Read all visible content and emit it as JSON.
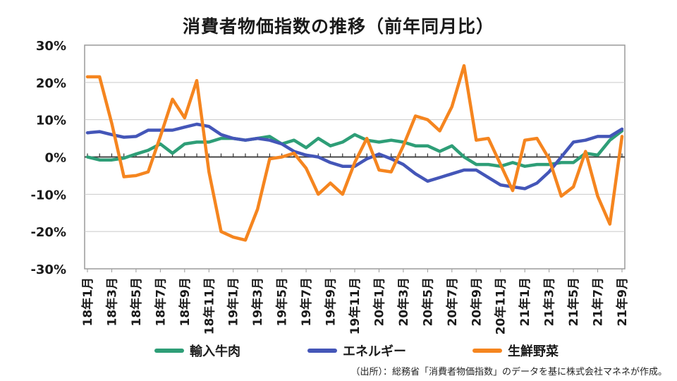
{
  "chart_data": {
    "type": "line",
    "title": "消費者物価指数の推移（前年同月比）",
    "source": "（出所）：総務省「消費者物価指数」のデータを基に株式会社マネネが作成。",
    "ylim": [
      -30,
      30
    ],
    "yticks": [
      "30%",
      "20%",
      "10%",
      "0%",
      "-10%",
      "-20%",
      "-30%"
    ],
    "ytick_values": [
      30,
      20,
      10,
      0,
      -10,
      -20,
      -30
    ],
    "x": [
      "18年1月",
      "18年2月",
      "18年3月",
      "18年4月",
      "18年5月",
      "18年6月",
      "18年7月",
      "18年8月",
      "18年9月",
      "18年10月",
      "18年11月",
      "18年12月",
      "19年1月",
      "19年2月",
      "19年3月",
      "19年4月",
      "19年5月",
      "19年6月",
      "19年7月",
      "19年8月",
      "19年9月",
      "19年10月",
      "19年11月",
      "19年12月",
      "20年1月",
      "20年2月",
      "20年3月",
      "20年4月",
      "20年5月",
      "20年6月",
      "20年7月",
      "20年8月",
      "20年9月",
      "20年10月",
      "20年11月",
      "20年12月",
      "21年1月",
      "21年2月",
      "21年3月",
      "21年4月",
      "21年5月",
      "21年6月",
      "21年7月",
      "21年8月",
      "21年9月"
    ],
    "xtick_labels": [
      "18年1月",
      "18年3月",
      "18年5月",
      "18年7月",
      "18年9月",
      "18年11月",
      "19年1月",
      "19年3月",
      "19年5月",
      "19年7月",
      "19年9月",
      "19年11月",
      "20年1月",
      "20年3月",
      "20年5月",
      "20年7月",
      "20年9月",
      "20年11月",
      "21年1月",
      "21年3月",
      "21年5月",
      "21年7月",
      "21年9月"
    ],
    "grid": true,
    "legend_position": "bottom",
    "series": [
      {
        "name": "輸入牛肉",
        "color": "#2e9e77",
        "values": [
          0,
          -0.8,
          -0.8,
          -0.3,
          0.8,
          1.8,
          3.5,
          1,
          3.5,
          4,
          4,
          5,
          5,
          4.5,
          5,
          5.5,
          3.5,
          4.5,
          2.5,
          5,
          3,
          4,
          6,
          4.5,
          4,
          4.5,
          4,
          3,
          3,
          1.5,
          3,
          0,
          -2,
          -2,
          -2.5,
          -1.5,
          -2.5,
          -2,
          -2,
          -1.5,
          -1.5,
          1,
          0.5,
          4.5,
          7
        ]
      },
      {
        "name": "エネルギー",
        "color": "#4456b8",
        "values": [
          6.5,
          6.8,
          6,
          5.3,
          5.5,
          7.2,
          7.2,
          7.2,
          8,
          8.8,
          8.2,
          6,
          5,
          4.5,
          5,
          4.5,
          3.5,
          1.5,
          0.5,
          0,
          -1.5,
          -2.5,
          -2.5,
          -0.5,
          0.8,
          -0.5,
          -2,
          -4.5,
          -6.5,
          -5.5,
          -4.5,
          -3.5,
          -3.5,
          -5.5,
          -7.5,
          -8,
          -8.5,
          -7,
          -4,
          0,
          4,
          4.5,
          5.5,
          5.5,
          7.5
        ]
      },
      {
        "name": "生鮮野菜",
        "color": "#f5851f",
        "values": [
          21.5,
          21.5,
          9,
          -5.3,
          -5,
          -4,
          5.5,
          15.5,
          10.5,
          20.5,
          -4,
          -20,
          -21.5,
          -22.3,
          -14,
          -0.5,
          0,
          1,
          -3,
          -10,
          -7,
          -10,
          -1.5,
          5,
          -3.5,
          -4,
          3,
          11,
          10,
          7,
          13.5,
          24.5,
          4.5,
          5,
          -2,
          -9,
          4.5,
          5,
          -0.5,
          -10.5,
          -8,
          1.5,
          -10.5,
          -18,
          5.5
        ]
      }
    ]
  },
  "legend": [
    "輸入牛肉",
    "エネルギー",
    "生鮮野菜"
  ]
}
